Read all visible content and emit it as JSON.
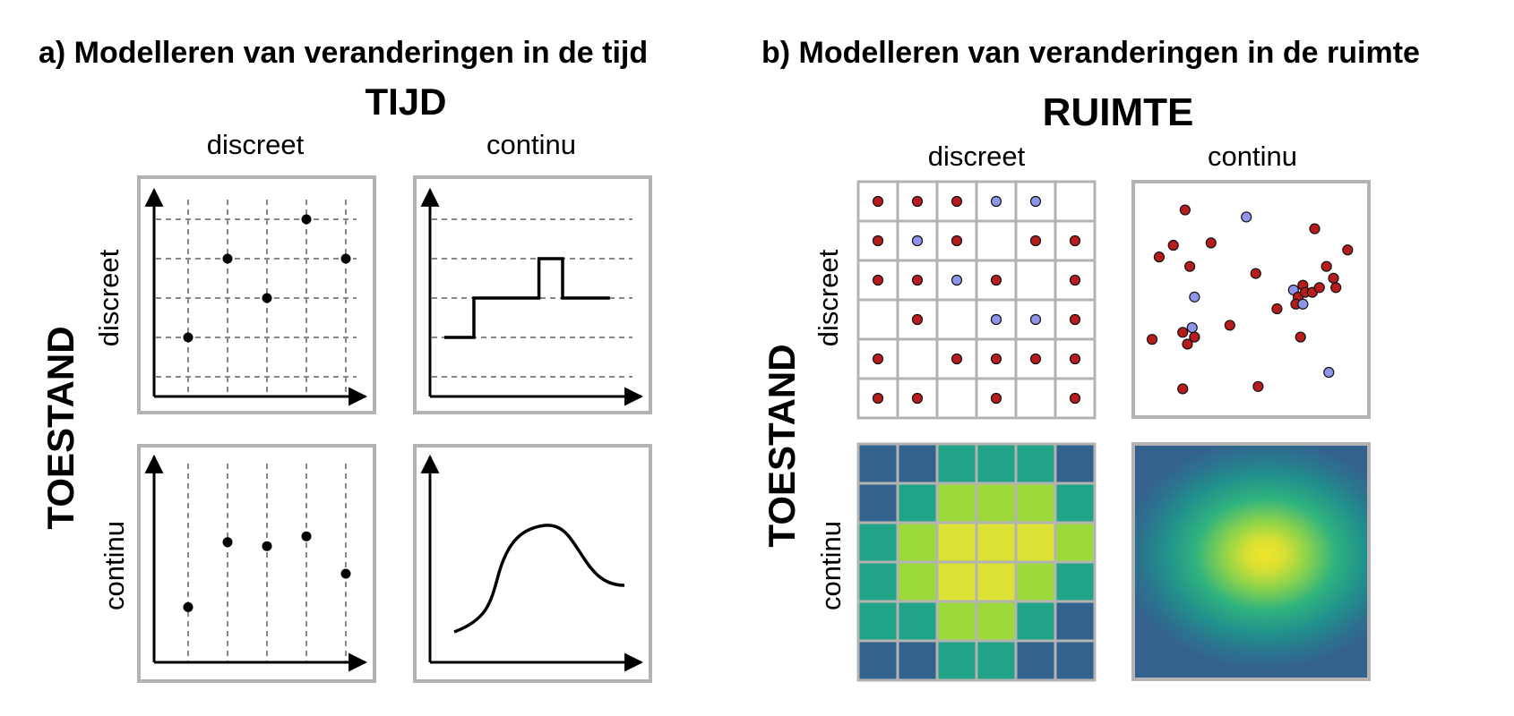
{
  "panel_a": {
    "title": "a) Modelleren van veranderingen in de tijd",
    "axis_header": "TIJD",
    "column_labels": [
      "discreet",
      "continu"
    ],
    "row_header": "TOESTAND",
    "row_labels": [
      "discreet",
      "continu"
    ],
    "plots": {
      "discrete_discrete": {
        "points": [
          [
            1,
            1
          ],
          [
            2,
            3
          ],
          [
            3,
            2
          ],
          [
            4,
            4
          ],
          [
            5,
            3
          ]
        ]
      },
      "discrete_continuous": {
        "step": [
          [
            0.5,
            1
          ],
          [
            1.25,
            1
          ],
          [
            1.25,
            2
          ],
          [
            2.9,
            2
          ],
          [
            2.9,
            3
          ],
          [
            3.5,
            3
          ],
          [
            3.5,
            2
          ],
          [
            4.7,
            2
          ]
        ]
      },
      "continuous_discrete": {
        "points": [
          [
            1,
            0.9
          ],
          [
            2,
            2.55
          ],
          [
            3,
            2.45
          ],
          [
            4,
            2.7
          ],
          [
            5,
            1.75
          ]
        ]
      },
      "continuous_continuous": {
        "curve_shape": "sigmoid-bump"
      }
    }
  },
  "panel_b": {
    "title": "b) Modelleren van veranderingen in de ruimte",
    "axis_header": "RUIMTE",
    "column_labels": [
      "discreet",
      "continu"
    ],
    "row_header": "TOESTAND",
    "row_labels": [
      "discreet",
      "continu"
    ],
    "colors": {
      "red": "#b71c1c",
      "blue": "#8f96ea",
      "grid_border": "#b3b3b3"
    },
    "agent_grid": [
      [
        "R",
        "R",
        "R",
        "B",
        "B",
        ""
      ],
      [
        "R",
        "B",
        "R",
        "",
        "R",
        "R"
      ],
      [
        "R",
        "R",
        "B",
        "R",
        "",
        "R"
      ],
      [
        "",
        "R",
        "",
        "B",
        "B",
        "R"
      ],
      [
        "R",
        "",
        "R",
        "R",
        "R",
        "R"
      ],
      [
        "R",
        "R",
        "",
        "R",
        "",
        "R"
      ]
    ],
    "free_agents": [
      [
        "R",
        0.22,
        0.12
      ],
      [
        "B",
        0.48,
        0.15
      ],
      [
        "R",
        0.77,
        0.2
      ],
      [
        "R",
        0.17,
        0.27
      ],
      [
        "R",
        0.33,
        0.26
      ],
      [
        "R",
        0.91,
        0.29
      ],
      [
        "R",
        0.11,
        0.32
      ],
      [
        "R",
        0.24,
        0.36
      ],
      [
        "R",
        0.52,
        0.39
      ],
      [
        "R",
        0.82,
        0.36
      ],
      [
        "R",
        0.85,
        0.41
      ],
      [
        "R",
        0.86,
        0.45
      ],
      [
        "R",
        0.72,
        0.44
      ],
      [
        "B",
        0.68,
        0.46
      ],
      [
        "R",
        0.7,
        0.49
      ],
      [
        "R",
        0.73,
        0.47
      ],
      [
        "R",
        0.76,
        0.47
      ],
      [
        "R",
        0.79,
        0.45
      ],
      [
        "B",
        0.26,
        0.49
      ],
      [
        "R",
        0.69,
        0.52
      ],
      [
        "B",
        0.72,
        0.52
      ],
      [
        "R",
        0.61,
        0.54
      ],
      [
        "B",
        0.25,
        0.62
      ],
      [
        "R",
        0.41,
        0.61
      ],
      [
        "R",
        0.21,
        0.64
      ],
      [
        "R",
        0.26,
        0.66
      ],
      [
        "R",
        0.08,
        0.67
      ],
      [
        "R",
        0.23,
        0.69
      ],
      [
        "R",
        0.71,
        0.66
      ],
      [
        "B",
        0.83,
        0.81
      ],
      [
        "R",
        0.21,
        0.88
      ],
      [
        "R",
        0.53,
        0.87
      ]
    ],
    "heat_grid": [
      [
        0,
        0,
        1,
        1,
        1,
        0
      ],
      [
        0,
        1,
        2,
        2,
        2,
        1
      ],
      [
        1,
        2,
        3,
        3,
        3,
        2
      ],
      [
        1,
        2,
        3,
        3,
        2,
        1
      ],
      [
        1,
        1,
        2,
        2,
        1,
        0
      ],
      [
        0,
        0,
        1,
        1,
        0,
        0
      ]
    ],
    "heat_colors": [
      "#33638d",
      "#20a386",
      "#9dd93b",
      "#dce136"
    ]
  }
}
